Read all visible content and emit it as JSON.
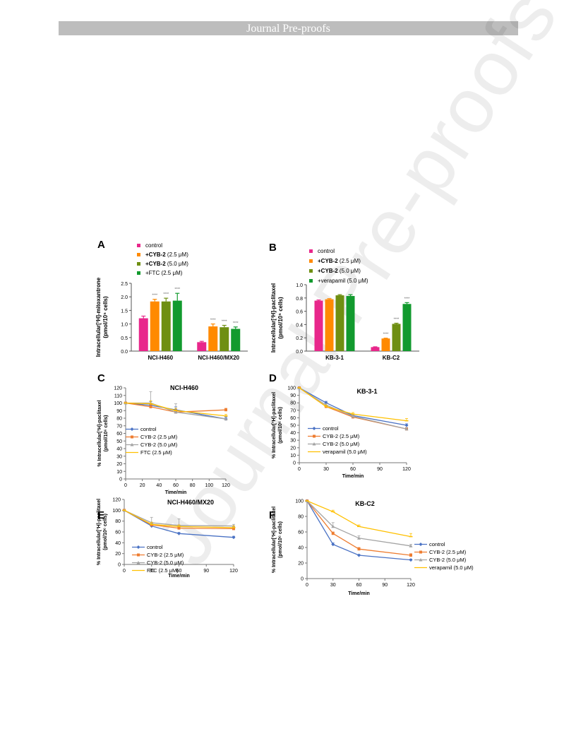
{
  "header": "Journal Pre-proofs",
  "watermark": "Journal Pre-proofs",
  "colors": {
    "control_bar": "#e8278b",
    "cyb25": "#ff8a00",
    "cyb50": "#6f8f12",
    "ftc": "#129a2e",
    "line_control": "#4a72c4",
    "line_cyb25": "#ee7d31",
    "line_cyb50": "#a4a4a4",
    "line_ftc": "#ffc000"
  },
  "chart_data": [
    {
      "panel": "A",
      "type": "bar",
      "categories": [
        "NCI-H460",
        "NCI-H460/MX20"
      ],
      "ylabel_main": "Intracellular[³H]-mitoxantrone",
      "ylabel_sub": "(pmol/10⁵ cells)",
      "ylim": [
        0,
        2.5
      ],
      "yticks": [
        "0.0",
        "0.5",
        "1.0",
        "1.5",
        "2.0",
        "2.5"
      ],
      "series": [
        {
          "name": "control",
          "values": [
            1.21,
            0.33
          ],
          "errors": [
            0.08,
            0.03
          ],
          "stars": [
            "",
            ""
          ]
        },
        {
          "name_bold": "+CYB-2",
          "name_rest": " (2.5 μM)",
          "values": [
            1.83,
            0.91
          ],
          "errors": [
            0.08,
            0.09
          ],
          "stars": [
            "****",
            "****"
          ]
        },
        {
          "name_bold": "+CYB-2",
          "name_rest": " (5.0 μM)",
          "values": [
            1.83,
            0.88
          ],
          "errors": [
            0.12,
            0.07
          ],
          "stars": [
            "****",
            "****"
          ]
        },
        {
          "name": "+FTC (2.5 μM)",
          "values": [
            1.86,
            0.82
          ],
          "errors": [
            0.27,
            0.07
          ],
          "stars": [
            "****",
            "****"
          ]
        }
      ]
    },
    {
      "panel": "B",
      "type": "bar",
      "categories": [
        "KB-3-1",
        "KB-C2"
      ],
      "ylabel_main": "Intracellular[³H]-paclitaxel",
      "ylabel_sub": "(pmol/10⁵ cells)",
      "ylim": [
        0,
        1.0
      ],
      "yticks": [
        "0.0",
        "0.2",
        "0.4",
        "0.6",
        "0.8",
        "1.0"
      ],
      "series": [
        {
          "name": "control",
          "values": [
            0.76,
            0.06
          ],
          "errors": [
            0.01,
            0.005
          ],
          "stars": [
            "",
            ""
          ]
        },
        {
          "name_bold": "+CYB-2",
          "name_rest": " (2.5 μM)",
          "values": [
            0.78,
            0.19
          ],
          "errors": [
            0.01,
            0.005
          ],
          "stars": [
            "",
            "****"
          ]
        },
        {
          "name_bold": "+CYB-2",
          "name_rest": " (5.0 μM)",
          "values": [
            0.84,
            0.41
          ],
          "errors": [
            0.01,
            0.01
          ],
          "stars": [
            "",
            "****"
          ]
        },
        {
          "name": "+verapamil (5.0 μM)",
          "values": [
            0.83,
            0.71
          ],
          "errors": [
            0.02,
            0.02
          ],
          "stars": [
            "",
            "****"
          ]
        }
      ]
    },
    {
      "panel": "C",
      "type": "line",
      "title": "NCI-H460",
      "x": [
        0,
        30,
        60,
        120
      ],
      "xticks": [
        "0",
        "20",
        "40",
        "60",
        "80",
        "100",
        "120"
      ],
      "xlim": [
        0,
        120
      ],
      "ylim": [
        0,
        120
      ],
      "yticks": [
        "0",
        "10",
        "20",
        "30",
        "40",
        "50",
        "60",
        "70",
        "80",
        "90",
        "100",
        "110",
        "120"
      ],
      "xlabel": "Time/min",
      "ylabel_main": "% Intracellular[³H]-paclitaxel",
      "ylabel_sub": "(pmol/10⁶ cells)",
      "series": [
        {
          "name": "control",
          "values": [
            100,
            97,
            91,
            79
          ],
          "errors": [
            0,
            5,
            4,
            2
          ]
        },
        {
          "name": "CYB-2 (2.5 μM)",
          "values": [
            100,
            95,
            88,
            91
          ],
          "errors": [
            0,
            3,
            3,
            2
          ]
        },
        {
          "name": "CYB-2 (5.0 μM)",
          "values": [
            100,
            100,
            88,
            79
          ],
          "errors": [
            0,
            15,
            11,
            3
          ]
        },
        {
          "name": "FTC (2.5 μM)",
          "values": [
            100,
            99,
            90,
            83
          ],
          "errors": [
            0,
            4,
            3,
            2
          ]
        }
      ]
    },
    {
      "panel": "D",
      "type": "line",
      "title": "KB-3-1",
      "x": [
        0,
        30,
        60,
        120
      ],
      "xticks": [
        "0",
        "30",
        "60",
        "90",
        "120"
      ],
      "xlim": [
        0,
        120
      ],
      "ylim": [
        0,
        100
      ],
      "yticks": [
        "0",
        "10",
        "20",
        "30",
        "40",
        "50",
        "60",
        "70",
        "80",
        "90",
        "100"
      ],
      "xlabel": "Time/min",
      "ylabel_main": "% Intracellular[³H]-paclitaxel",
      "ylabel_sub": "(pmol/10⁶ cells)",
      "series": [
        {
          "name": "control",
          "values": [
            100,
            80,
            63,
            50
          ],
          "errors": [
            0,
            2,
            2,
            2
          ]
        },
        {
          "name": "CYB-2 (2.5 μM)",
          "values": [
            100,
            75,
            61,
            45
          ],
          "errors": [
            0,
            2,
            2,
            2
          ]
        },
        {
          "name": "CYB-2 (5.0 μM)",
          "values": [
            100,
            77,
            62,
            45
          ],
          "errors": [
            0,
            2,
            2,
            2
          ]
        },
        {
          "name": "verapamil (5.0 μM)",
          "values": [
            100,
            75,
            65,
            56
          ],
          "errors": [
            0,
            2,
            2,
            3
          ]
        }
      ]
    },
    {
      "panel": "E",
      "type": "line",
      "title": "NCI-H460/MX20",
      "x": [
        0,
        30,
        60,
        120
      ],
      "xticks": [
        "0",
        "30",
        "60",
        "90",
        "120"
      ],
      "xlim": [
        0,
        120
      ],
      "ylim": [
        0,
        120
      ],
      "yticks": [
        "0",
        "20",
        "40",
        "60",
        "80",
        "100",
        "120"
      ],
      "xlabel": "Time/min",
      "ylabel_main": "% Intracellular[³H]-paclitaxel",
      "ylabel_sub": "(pmol/10⁶ cells)",
      "series": [
        {
          "name": "control",
          "values": [
            100,
            71,
            57,
            50
          ],
          "errors": [
            0,
            2,
            2,
            2
          ]
        },
        {
          "name": "CYB-2 (2.5 μM)",
          "values": [
            100,
            73,
            67,
            66
          ],
          "errors": [
            0,
            3,
            3,
            3
          ]
        },
        {
          "name": "CYB-2 (5.0 μM)",
          "values": [
            100,
            77,
            72,
            71
          ],
          "errors": [
            0,
            10,
            12,
            3
          ]
        },
        {
          "name": "FTC (2.5 μM)",
          "values": [
            100,
            74,
            70,
            68
          ],
          "errors": [
            0,
            4,
            3,
            3
          ]
        }
      ]
    },
    {
      "panel": "F",
      "type": "line",
      "title": "KB-C2",
      "x": [
        0,
        30,
        60,
        120
      ],
      "xticks": [
        "0",
        "30",
        "60",
        "90",
        "120"
      ],
      "xlim": [
        0,
        120
      ],
      "ylim": [
        0,
        100
      ],
      "yticks": [
        "0",
        "20",
        "40",
        "60",
        "80",
        "100"
      ],
      "xlabel": "Time/min",
      "ylabel_main": "% Intracellular[³H]-paclitaxel",
      "ylabel_sub": "(pmol/10⁶ cells)",
      "series": [
        {
          "name": "control",
          "values": [
            100,
            44,
            30,
            24
          ],
          "errors": [
            0,
            2,
            1,
            1
          ]
        },
        {
          "name": "CYB-2 (2.5 μM)",
          "values": [
            100,
            58,
            38,
            30
          ],
          "errors": [
            0,
            2,
            2,
            2
          ]
        },
        {
          "name": "CYB-2 (5.0 μM)",
          "values": [
            100,
            67,
            52,
            42
          ],
          "errors": [
            0,
            5,
            3,
            2
          ]
        },
        {
          "name": "verapamil (5.0 μM)",
          "values": [
            100,
            86,
            67,
            54
          ],
          "errors": [
            0,
            2,
            2,
            4
          ]
        }
      ]
    }
  ]
}
